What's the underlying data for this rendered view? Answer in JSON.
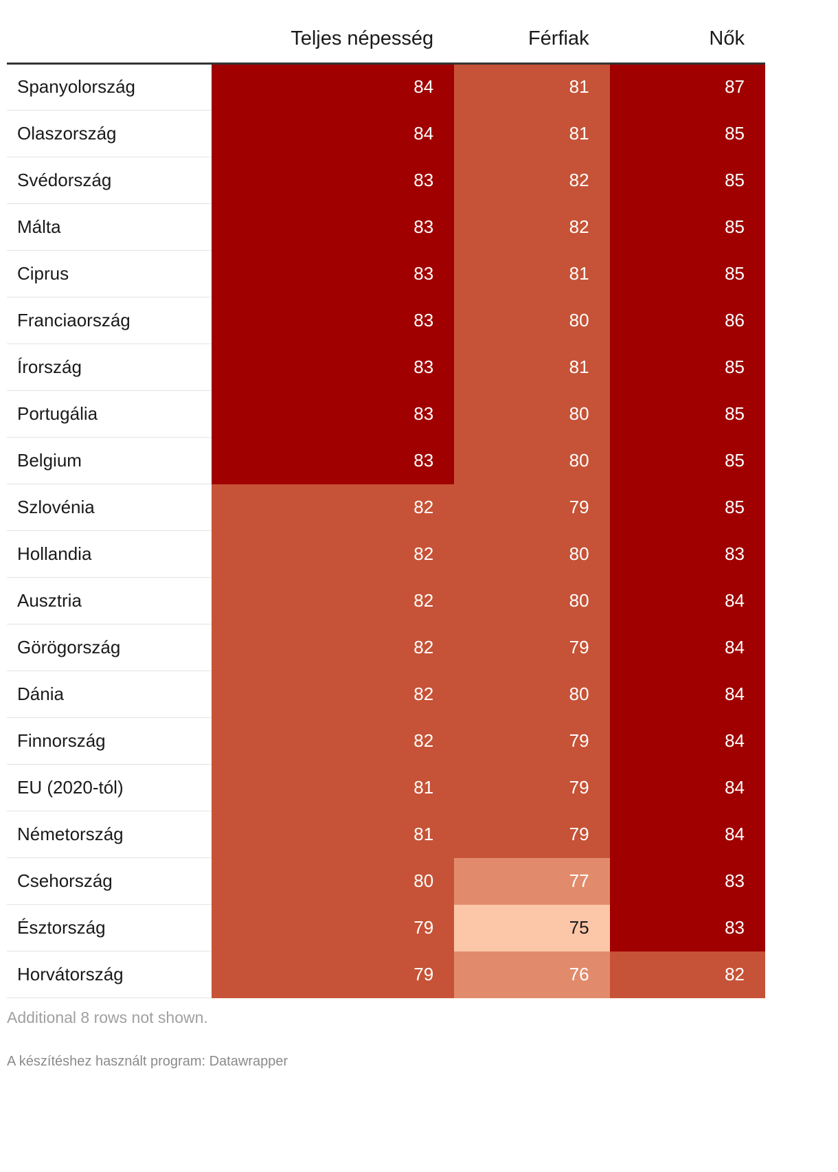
{
  "chart_data": {
    "type": "table",
    "columns": [
      "",
      "Teljes népesség",
      "Férfiak",
      "Nők"
    ],
    "rows": [
      {
        "country": "Spanyolország",
        "total": 84,
        "men": 81,
        "women": 87
      },
      {
        "country": "Olaszország",
        "total": 84,
        "men": 81,
        "women": 85
      },
      {
        "country": "Svédország",
        "total": 83,
        "men": 82,
        "women": 85
      },
      {
        "country": "Málta",
        "total": 83,
        "men": 82,
        "women": 85
      },
      {
        "country": "Ciprus",
        "total": 83,
        "men": 81,
        "women": 85
      },
      {
        "country": "Franciaország",
        "total": 83,
        "men": 80,
        "women": 86
      },
      {
        "country": "Írország",
        "total": 83,
        "men": 81,
        "women": 85
      },
      {
        "country": "Portugália",
        "total": 83,
        "men": 80,
        "women": 85
      },
      {
        "country": "Belgium",
        "total": 83,
        "men": 80,
        "women": 85
      },
      {
        "country": "Szlovénia",
        "total": 82,
        "men": 79,
        "women": 85
      },
      {
        "country": "Hollandia",
        "total": 82,
        "men": 80,
        "women": 83
      },
      {
        "country": "Ausztria",
        "total": 82,
        "men": 80,
        "women": 84
      },
      {
        "country": "Görögország",
        "total": 82,
        "men": 79,
        "women": 84
      },
      {
        "country": "Dánia",
        "total": 82,
        "men": 80,
        "women": 84
      },
      {
        "country": "Finnország",
        "total": 82,
        "men": 79,
        "women": 84
      },
      {
        "country": "EU (2020-tól)",
        "total": 81,
        "men": 79,
        "women": 84
      },
      {
        "country": "Németország",
        "total": 81,
        "men": 79,
        "women": 84
      },
      {
        "country": "Csehország",
        "total": 80,
        "men": 77,
        "women": 83
      },
      {
        "country": "Észtország",
        "total": 79,
        "men": 75,
        "women": 83
      },
      {
        "country": "Horvátország",
        "total": 79,
        "men": 76,
        "women": 82
      }
    ],
    "notes": "Additional 8 rows not shown.",
    "footer": "A készítéshez használt program: Datawrapper",
    "colors": {
      "darkest": "#a00000",
      "dark": "#c65337",
      "medium": "#e28b6c",
      "light": "#fcc6a8"
    }
  }
}
